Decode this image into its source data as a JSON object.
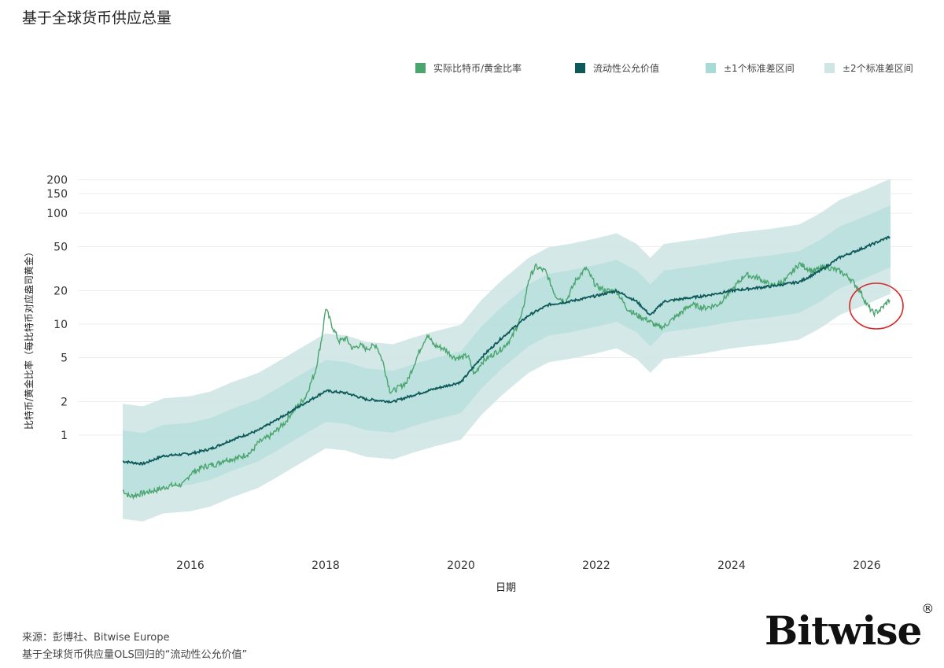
{
  "title": "基于全球货币供应总量",
  "legend": [
    {
      "label": "实际比特币/黄金比率",
      "color": "#4aa56f"
    },
    {
      "label": "流动性公允价值",
      "color": "#0e5a5a"
    },
    {
      "label": "±1个标准差区间",
      "color": "#a8dad8"
    },
    {
      "label": "±2个标准差区间",
      "color": "#cfe6e4"
    }
  ],
  "footer": {
    "source": "来源：彭博社、Bitwise Europe",
    "note": "基于全球货币供应量OLS回归的“流动性公允价值”"
  },
  "brand": {
    "name": "Bitwise",
    "mark": "®"
  },
  "chart_data": {
    "type": "line",
    "xlabel": "日期",
    "ylabel": "比特币/黄金比率（每比特币对应盎司黄金）",
    "y_scale": "log",
    "ylim": [
      0.25,
      230
    ],
    "xlim": [
      2015.0,
      2026.7
    ],
    "x_ticks": [
      2016,
      2018,
      2020,
      2022,
      2024,
      2026
    ],
    "x_tick_labels": [
      "2016",
      "2018",
      "2020",
      "2022",
      "2024",
      "2026"
    ],
    "y_ticks": [
      1,
      2,
      5,
      10,
      20,
      50,
      100,
      150,
      200
    ],
    "y_tick_labels": [
      "1",
      "2",
      "5",
      "10",
      "20",
      "50",
      "100",
      "150",
      "200"
    ],
    "grid": "horizontal",
    "legend_position": "top",
    "series": [
      {
        "name": "实际比特币/黄金比率",
        "color": "#4aa56f",
        "x": [
          2015.0,
          2015.1,
          2015.3,
          2015.5,
          2015.7,
          2015.9,
          2016.0,
          2016.2,
          2016.4,
          2016.5,
          2016.7,
          2016.9,
          2017.0,
          2017.2,
          2017.4,
          2017.5,
          2017.7,
          2017.85,
          2017.95,
          2018.0,
          2018.1,
          2018.2,
          2018.3,
          2018.4,
          2018.5,
          2018.6,
          2018.75,
          2018.85,
          2018.95,
          2019.0,
          2019.2,
          2019.4,
          2019.5,
          2019.6,
          2019.75,
          2019.9,
          2020.0,
          2020.1,
          2020.2,
          2020.3,
          2020.5,
          2020.6,
          2020.75,
          2020.9,
          2021.0,
          2021.1,
          2021.25,
          2021.4,
          2021.55,
          2021.7,
          2021.85,
          2022.0,
          2022.15,
          2022.3,
          2022.45,
          2022.6,
          2022.75,
          2022.9,
          2023.0,
          2023.2,
          2023.4,
          2023.6,
          2023.8,
          2024.0,
          2024.2,
          2024.4,
          2024.6,
          2024.8,
          2025.0,
          2025.2,
          2025.4,
          2025.6,
          2025.75,
          2025.9,
          2026.0,
          2026.1,
          2026.2,
          2026.35
        ],
        "values": [
          0.32,
          0.28,
          0.3,
          0.32,
          0.35,
          0.36,
          0.45,
          0.52,
          0.55,
          0.6,
          0.62,
          0.7,
          0.85,
          1.0,
          1.3,
          1.6,
          2.2,
          3.8,
          8.0,
          14.0,
          9.5,
          7.0,
          7.5,
          6.0,
          6.5,
          6.0,
          6.5,
          4.5,
          2.5,
          2.5,
          3.0,
          6.0,
          8.0,
          6.5,
          6.0,
          5.0,
          5.0,
          5.2,
          3.5,
          4.5,
          5.5,
          6.0,
          7.5,
          12.0,
          25.0,
          33.0,
          30.0,
          18.0,
          16.0,
          25.0,
          32.0,
          22.0,
          20.0,
          20.0,
          14.0,
          12.0,
          11.0,
          9.5,
          9.5,
          12.0,
          15.0,
          14.0,
          15.0,
          20.0,
          28.0,
          26.0,
          22.0,
          25.0,
          35.0,
          30.0,
          33.0,
          30.0,
          26.0,
          20.0,
          15.0,
          12.5,
          13.5,
          17.0
        ]
      },
      {
        "name": "流动性公允价值",
        "color": "#0e5a5a",
        "x": [
          2015.0,
          2015.3,
          2015.6,
          2016.0,
          2016.3,
          2016.6,
          2017.0,
          2017.3,
          2017.6,
          2018.0,
          2018.3,
          2018.6,
          2019.0,
          2019.3,
          2019.6,
          2020.0,
          2020.3,
          2020.6,
          2021.0,
          2021.3,
          2021.6,
          2022.0,
          2022.3,
          2022.6,
          2022.8,
          2023.0,
          2023.3,
          2023.6,
          2024.0,
          2024.3,
          2024.6,
          2025.0,
          2025.3,
          2025.6,
          2026.0,
          2026.35
        ],
        "values": [
          0.58,
          0.55,
          0.65,
          0.68,
          0.75,
          0.9,
          1.1,
          1.4,
          1.8,
          2.5,
          2.4,
          2.1,
          2.0,
          2.3,
          2.6,
          3.0,
          5.0,
          7.5,
          12.0,
          15.0,
          16.0,
          18.0,
          20.0,
          16.0,
          12.0,
          16.0,
          17.0,
          18.0,
          20.0,
          21.0,
          22.0,
          24.0,
          30.0,
          40.0,
          50.0,
          62.0
        ]
      }
    ]
  }
}
